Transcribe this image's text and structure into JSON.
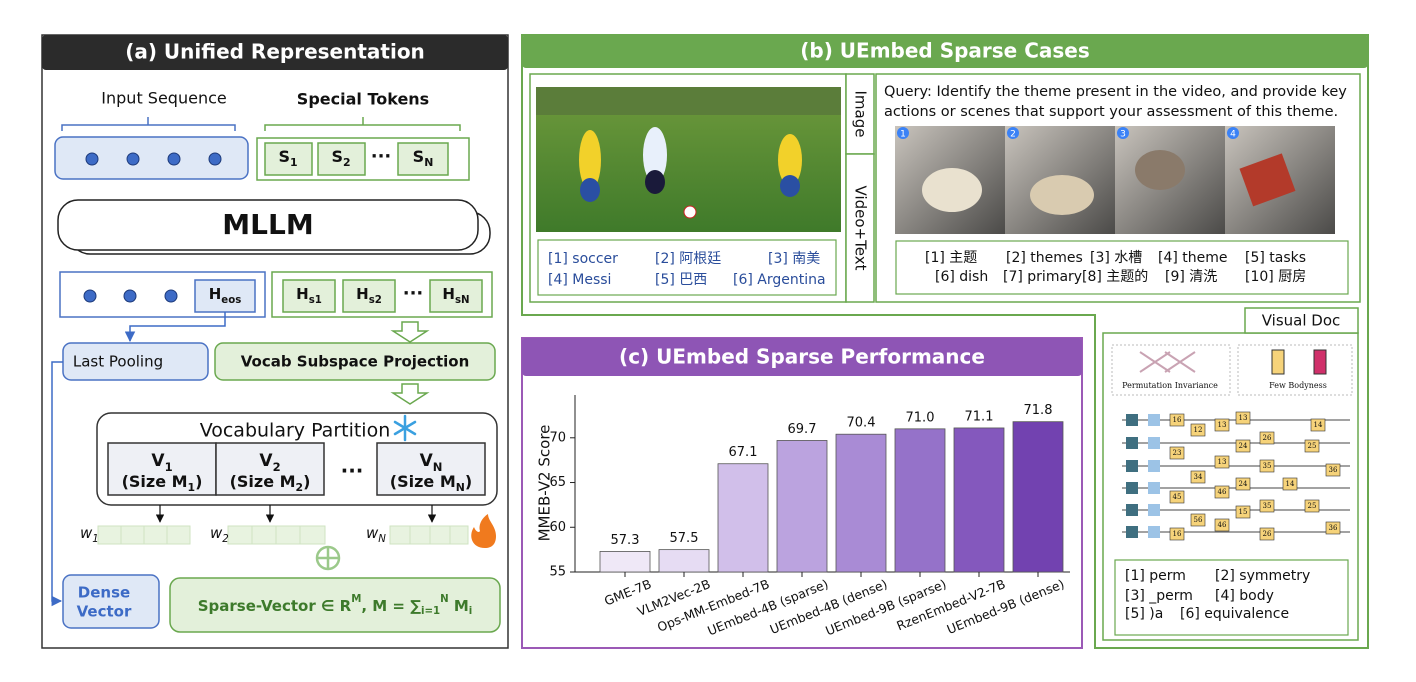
{
  "panel_a": {
    "title": "(a) Unified Representation",
    "input_sequence": "Input Sequence",
    "special_tokens_label": "Special Tokens",
    "special_tokens": [
      {
        "base": "S",
        "sub": "1"
      },
      {
        "base": "S",
        "sub": "2"
      },
      {
        "base": "S",
        "sub": "N"
      }
    ],
    "ellipsis": "···",
    "model": "MLLM",
    "eos_token": {
      "base": "H",
      "sub": "eos"
    },
    "hidden_tokens": [
      {
        "base": "H",
        "sub": "s1"
      },
      {
        "base": "H",
        "sub": "s2"
      },
      {
        "base": "H",
        "sub": "sN"
      }
    ],
    "last_pooling": "Last Pooling",
    "projection": "Vocab Subspace Projection",
    "partition_title": "Vocabulary Partition",
    "partitions": [
      {
        "name": {
          "base": "V",
          "sub": "1"
        },
        "size": {
          "base": "(Size M",
          "sub": "1",
          "post": ")"
        }
      },
      {
        "name": {
          "base": "V",
          "sub": "2"
        },
        "size": {
          "base": "(Size M",
          "sub": "2",
          "post": ")"
        }
      },
      {
        "name": {
          "base": "V",
          "sub": "N"
        },
        "size": {
          "base": "(Size M",
          "sub": "N",
          "post": ")"
        }
      }
    ],
    "weights": [
      {
        "base": "w",
        "sub": "1"
      },
      {
        "base": "w",
        "sub": "2"
      },
      {
        "base": "w",
        "sub": "N"
      }
    ],
    "dense_vector": [
      "Dense",
      "Vector"
    ],
    "sparse_vector": [
      {
        "text": "Sparse-Vector ∈ R",
        "pos": "base"
      },
      {
        "text": "M",
        "pos": "sup"
      },
      {
        "text": ", M = ∑",
        "pos": "base"
      },
      {
        "text": "i=1",
        "pos": "sub"
      },
      {
        "text": "N",
        "pos": "sup"
      },
      {
        "text": " M",
        "pos": "base"
      },
      {
        "text": "i",
        "pos": "sub"
      }
    ]
  },
  "panel_b": {
    "title": "(b) UEmbed Sparse Cases",
    "image_tab": "Image",
    "video_tab": "Video+Text",
    "image_tokens": [
      "[1] soccer",
      "[2] 阿根廷",
      "[3] 南美",
      "[4] Messi",
      "[5] 巴西",
      "[6] Argentina"
    ],
    "query": [
      "Query: Identify the theme present in the video, and provide key",
      "actions or scenes that support your assessment of this theme."
    ],
    "frame_numbers": [
      "1",
      "2",
      "3",
      "4"
    ],
    "video_tokens": [
      "[1] 主题",
      "[2] themes",
      "[3] 水槽",
      "[4] theme",
      "[5] tasks",
      "[6] dish",
      "[7] primary",
      "[8] 主题的",
      "[9] 清洗",
      "[10] 厨房"
    ],
    "doc_tab": "Visual Doc",
    "doc_captions": [
      "Permutation Invariance",
      "Few Bodyness"
    ],
    "doc_numbers": [
      "16",
      "12",
      "13",
      "13",
      "14",
      "24",
      "26",
      "23",
      "13",
      "25",
      "35",
      "36",
      "34",
      "24",
      "14",
      "45",
      "46",
      "15",
      "25",
      "56",
      "46",
      "35",
      "36",
      "26",
      "16"
    ],
    "doc_tokens": [
      "[1] perm",
      "[2] symmetry",
      "[3] _perm",
      "[4] body",
      "[5] )a",
      "[6] equivalence"
    ]
  },
  "chart_data": {
    "type": "bar",
    "title": "(c) UEmbed Sparse Performance",
    "y_label": "MMEB-V2 Score",
    "categories": [
      "GME-7B",
      "VLM2Vec-2B",
      "Ops-MM-Embed-7B",
      "UEmbed-4B (sparse)",
      "UEmbed-4B (dense)",
      "UEmbed-9B (sparse)",
      "RzenEmbed-V2-7B",
      "UEmbed-9B (dense)"
    ],
    "values": [
      57.3,
      57.5,
      67.1,
      69.7,
      70.4,
      71.0,
      71.1,
      71.8
    ],
    "value_labels": [
      "57.3",
      "57.5",
      "67.1",
      "69.7",
      "70.4",
      "71.0",
      "71.1",
      "71.8"
    ],
    "colors": [
      "#efe8f7",
      "#e6dcf3",
      "#d1bfea",
      "#bba3df",
      "#a98bd5",
      "#9572c9",
      "#8458bd",
      "#7242b0"
    ],
    "ylim": [
      55,
      74
    ],
    "yticks": [
      55,
      60,
      65,
      70
    ]
  }
}
